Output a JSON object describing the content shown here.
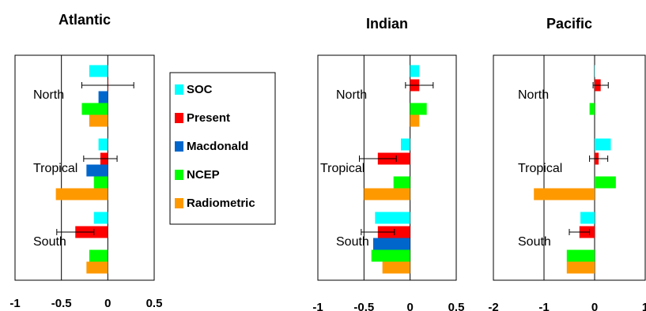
{
  "chart_data": [
    {
      "type": "bar",
      "orientation": "horizontal",
      "title": "Atlantic",
      "xlim": [
        -1,
        0.5
      ],
      "xticks": [
        "-1",
        "-0.5",
        "0",
        "0.5"
      ],
      "xtick_values": [
        -1,
        -0.5,
        0,
        0.5
      ],
      "region_positions": [
        "North",
        "Tropical",
        "South"
      ],
      "categories": [
        "North",
        "Tropical",
        "South"
      ],
      "series": [
        {
          "name": "SOC",
          "values": [
            -0.2,
            -0.1,
            -0.15
          ]
        },
        {
          "name": "Present",
          "values": [
            0,
            -0.08,
            -0.35
          ],
          "error": [
            0.28,
            0.18,
            0.2
          ]
        },
        {
          "name": "Macdonald",
          "values": [
            -0.1,
            -0.23,
            null
          ]
        },
        {
          "name": "NCEP",
          "values": [
            -0.28,
            -0.15,
            -0.2
          ]
        },
        {
          "name": "Radiometric",
          "values": [
            -0.2,
            -0.56,
            -0.23
          ]
        }
      ]
    },
    {
      "type": "bar",
      "orientation": "horizontal",
      "title": "Indian",
      "xlim": [
        -1,
        0.5
      ],
      "xticks": [
        "-1",
        "-0.5",
        "0",
        "0.5"
      ],
      "xtick_values": [
        -1,
        -0.5,
        0,
        0.5
      ],
      "region_positions": [
        "North",
        "Tropical",
        "South"
      ],
      "categories": [
        "North",
        "Tropical",
        "South"
      ],
      "series": [
        {
          "name": "SOC",
          "values": [
            0.1,
            -0.1,
            -0.38
          ]
        },
        {
          "name": "Present",
          "values": [
            0.1,
            -0.35,
            -0.35
          ],
          "error": [
            0.15,
            0.2,
            0.18
          ]
        },
        {
          "name": "Macdonald",
          "values": [
            null,
            null,
            -0.4
          ]
        },
        {
          "name": "NCEP",
          "values": [
            0.18,
            -0.18,
            -0.42
          ]
        },
        {
          "name": "Radiometric",
          "values": [
            0.1,
            -0.5,
            -0.3
          ]
        }
      ]
    },
    {
      "type": "bar",
      "orientation": "horizontal",
      "title": "Pacific",
      "xlim": [
        -2,
        1
      ],
      "xticks": [
        "-2",
        "-1",
        "0",
        "1"
      ],
      "xtick_values": [
        -2,
        -1,
        0,
        1
      ],
      "region_positions": [
        "North",
        "Tropical",
        "South"
      ],
      "categories": [
        "North",
        "Tropical",
        "South"
      ],
      "series": [
        {
          "name": "SOC",
          "values": [
            0,
            0.32,
            -0.28
          ]
        },
        {
          "name": "Present",
          "values": [
            0.12,
            0.08,
            -0.3
          ],
          "error": [
            0.15,
            0.18,
            0.2
          ]
        },
        {
          "name": "Macdonald",
          "values": [
            null,
            null,
            null
          ]
        },
        {
          "name": "NCEP",
          "values": [
            -0.1,
            0.42,
            -0.55
          ]
        },
        {
          "name": "Radiometric",
          "values": [
            null,
            -1.2,
            -0.55
          ]
        }
      ]
    }
  ],
  "legend": {
    "items": [
      {
        "name": "SOC",
        "color": "#00ffff"
      },
      {
        "name": "Present",
        "color": "#ff0000"
      },
      {
        "name": "Macdonald",
        "color": "#0066cc"
      },
      {
        "name": "NCEP",
        "color": "#00ff00"
      },
      {
        "name": "Radiometric",
        "color": "#ff9900"
      }
    ]
  },
  "colors": {
    "SOC": "#00ffff",
    "Present": "#ff0000",
    "Macdonald": "#0066cc",
    "NCEP": "#00ff00",
    "Radiometric": "#ff9900"
  }
}
